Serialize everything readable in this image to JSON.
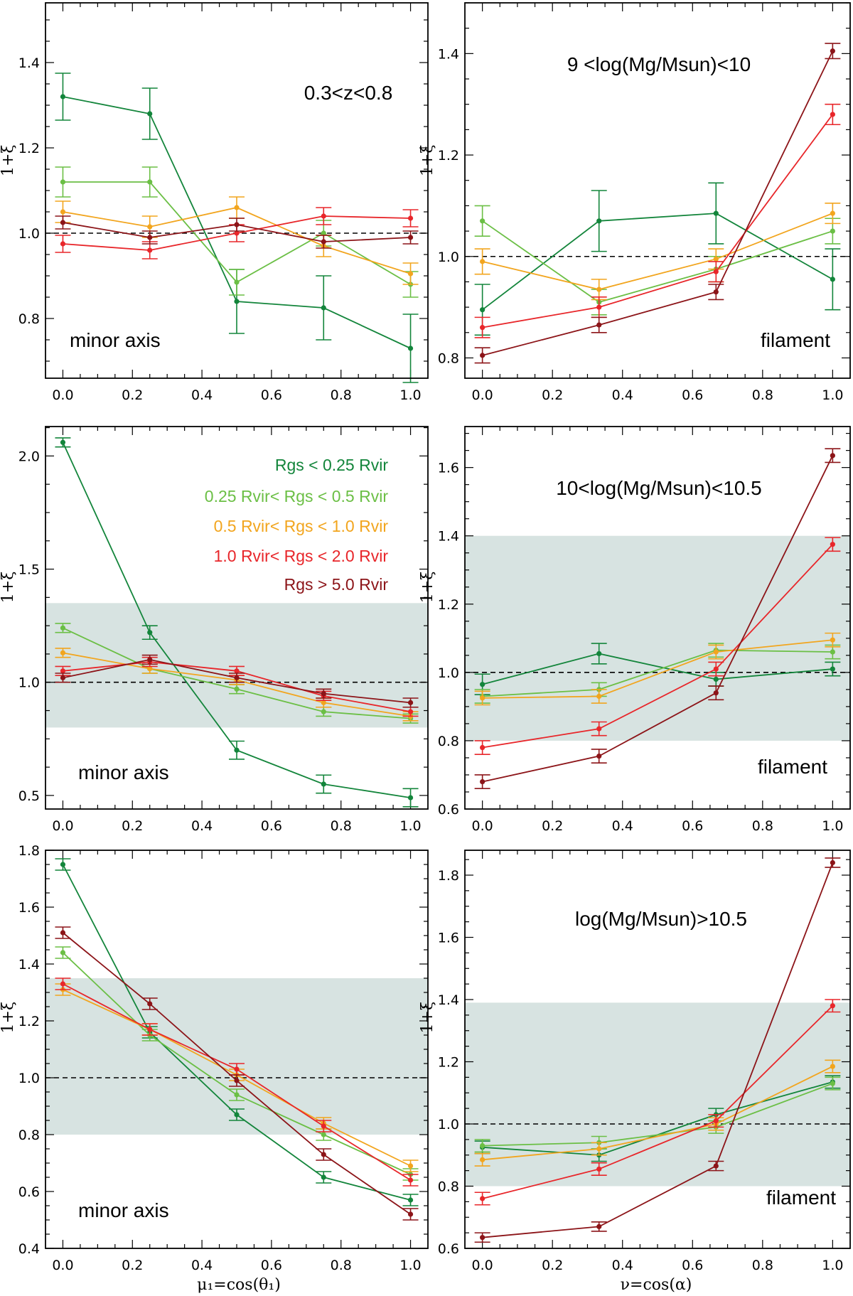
{
  "colors": {
    "dark_green": "#13853b",
    "light_green": "#6bbf45",
    "orange": "#f2a51e",
    "red": "#e8262a",
    "dark_red": "#8c1418",
    "band": "#d7e3e1"
  },
  "legend": [
    {
      "name": "Rgs < 0.25 Rvir",
      "color": "#13853b"
    },
    {
      "name": "0.25 Rvir< Rgs < 0.5 Rvir",
      "color": "#6bbf45"
    },
    {
      "name": "0.5 Rvir< Rgs < 1.0 Rvir",
      "color": "#f2a51e"
    },
    {
      "name": "1.0 Rvir< Rgs < 2.0 Rvir",
      "color": "#e8262a"
    },
    {
      "name": "Rgs > 5.0 Rvir",
      "color": "#8c1418"
    }
  ],
  "xlabels": {
    "left": "μ₁=cos(θ₁)",
    "right": "ν=cos(α)"
  },
  "chart_data": [
    {
      "type": "line",
      "ylabel": "1+ξ",
      "annotations": [
        "0.3<z<0.8",
        "minor axis"
      ],
      "x": [
        0.0,
        0.25,
        0.5,
        0.75,
        1.0
      ],
      "xlim": [
        -0.05,
        1.05
      ],
      "ylim": [
        0.66,
        1.54
      ],
      "xticks": [
        "0.0",
        "0.2",
        "0.4",
        "0.6",
        "0.8",
        "1.0"
      ],
      "yticks": [
        "0.8",
        "1.0",
        "1.2",
        "1.4"
      ],
      "band": null,
      "reference_line": 1.0,
      "series": [
        {
          "name": "Rgs < 0.25 Rvir",
          "values": [
            1.32,
            1.28,
            0.84,
            0.825,
            0.73
          ],
          "errors": [
            0.055,
            0.06,
            0.075,
            0.075,
            0.08
          ]
        },
        {
          "name": "0.25 Rvir< Rgs < 0.5 Rvir",
          "values": [
            1.12,
            1.12,
            0.885,
            1.0,
            0.88
          ],
          "errors": [
            0.035,
            0.035,
            0.03,
            0.03,
            0.03
          ]
        },
        {
          "name": "0.5 Rvir< Rgs < 1.0 Rvir",
          "values": [
            1.05,
            1.015,
            1.06,
            0.97,
            0.905
          ],
          "errors": [
            0.025,
            0.025,
            0.025,
            0.025,
            0.025
          ]
        },
        {
          "name": "1.0 Rvir< Rgs < 2.0 Rvir",
          "values": [
            0.975,
            0.96,
            1.0,
            1.04,
            1.035
          ],
          "errors": [
            0.02,
            0.02,
            0.02,
            0.02,
            0.02
          ]
        },
        {
          "name": "Rgs > 5.0 Rvir",
          "values": [
            1.025,
            0.99,
            1.02,
            0.98,
            0.99
          ],
          "errors": [
            0.015,
            0.015,
            0.015,
            0.015,
            0.015
          ]
        }
      ]
    },
    {
      "type": "line",
      "ylabel": "1+ξ",
      "annotations": [
        "9 <log(Mg/Msun)<10",
        "filament"
      ],
      "x": [
        0.0,
        0.333,
        0.667,
        1.0
      ],
      "xlim": [
        -0.05,
        1.05
      ],
      "ylim": [
        0.76,
        1.5
      ],
      "xticks": [
        "0.0",
        "0.2",
        "0.4",
        "0.6",
        "0.8",
        "1.0"
      ],
      "yticks": [
        "0.8",
        "1.0",
        "1.2",
        "1.4"
      ],
      "band": null,
      "reference_line": 1.0,
      "series": [
        {
          "name": "Rgs < 0.25 Rvir",
          "values": [
            0.895,
            1.07,
            1.085,
            0.955
          ],
          "errors": [
            0.05,
            0.06,
            0.06,
            0.06
          ]
        },
        {
          "name": "0.25 Rvir< Rgs < 0.5 Rvir",
          "values": [
            1.07,
            0.91,
            0.975,
            1.05
          ],
          "errors": [
            0.03,
            0.025,
            0.025,
            0.025
          ]
        },
        {
          "name": "0.5 Rvir< Rgs < 1.0 Rvir",
          "values": [
            0.99,
            0.935,
            0.995,
            1.085
          ],
          "errors": [
            0.025,
            0.02,
            0.02,
            0.02
          ]
        },
        {
          "name": "1.0 Rvir< Rgs < 2.0 Rvir",
          "values": [
            0.86,
            0.9,
            0.97,
            1.28
          ],
          "errors": [
            0.02,
            0.02,
            0.02,
            0.02
          ]
        },
        {
          "name": "Rgs > 5.0 Rvir",
          "values": [
            0.805,
            0.865,
            0.93,
            1.405
          ],
          "errors": [
            0.015,
            0.015,
            0.015,
            0.015
          ]
        }
      ]
    },
    {
      "type": "line",
      "ylabel": "1+ξ",
      "annotations": [
        "minor axis"
      ],
      "x": [
        0.0,
        0.25,
        0.5,
        0.75,
        1.0
      ],
      "xlim": [
        -0.05,
        1.05
      ],
      "ylim": [
        0.44,
        2.13
      ],
      "xticks": [
        "0.0",
        "0.2",
        "0.4",
        "0.6",
        "0.8",
        "1.0"
      ],
      "yticks": [
        "0.5",
        "1.0",
        "1.5",
        "2.0"
      ],
      "band": [
        0.8,
        1.35
      ],
      "reference_line": 1.0,
      "series": [
        {
          "name": "Rgs < 0.25 Rvir",
          "values": [
            2.06,
            1.22,
            0.7,
            0.55,
            0.49
          ],
          "errors": [
            0.02,
            0.03,
            0.04,
            0.04,
            0.04
          ]
        },
        {
          "name": "0.25 Rvir< Rgs < 0.5 Rvir",
          "values": [
            1.24,
            1.06,
            0.97,
            0.87,
            0.84
          ],
          "errors": [
            0.02,
            0.02,
            0.02,
            0.02,
            0.02
          ]
        },
        {
          "name": "0.5 Rvir< Rgs < 1.0 Rvir",
          "values": [
            1.13,
            1.06,
            1.01,
            0.91,
            0.85
          ],
          "errors": [
            0.02,
            0.02,
            0.02,
            0.02,
            0.02
          ]
        },
        {
          "name": "1.0 Rvir< Rgs < 2.0 Rvir",
          "values": [
            1.05,
            1.09,
            1.05,
            0.94,
            0.87
          ],
          "errors": [
            0.02,
            0.02,
            0.02,
            0.02,
            0.02
          ]
        },
        {
          "name": "Rgs > 5.0 Rvir",
          "values": [
            1.02,
            1.1,
            1.02,
            0.95,
            0.91
          ],
          "errors": [
            0.02,
            0.02,
            0.02,
            0.02,
            0.02
          ]
        }
      ]
    },
    {
      "type": "line",
      "ylabel": "1+ξ",
      "annotations": [
        "10<log(Mg/Msun)<10.5",
        "filament"
      ],
      "x": [
        0.0,
        0.333,
        0.667,
        1.0
      ],
      "xlim": [
        -0.05,
        1.05
      ],
      "ylim": [
        0.6,
        1.72
      ],
      "xticks": [
        "0.0",
        "0.2",
        "0.4",
        "0.6",
        "0.8",
        "1.0"
      ],
      "yticks": [
        "0.6",
        "0.8",
        "1.0",
        "1.2",
        "1.4",
        "1.6"
      ],
      "band": [
        0.8,
        1.4
      ],
      "reference_line": 1.0,
      "series": [
        {
          "name": "Rgs < 0.25 Rvir",
          "values": [
            0.965,
            1.055,
            0.98,
            1.01
          ],
          "errors": [
            0.03,
            0.03,
            0.02,
            0.02
          ]
        },
        {
          "name": "0.25 Rvir< Rgs < 0.5 Rvir",
          "values": [
            0.93,
            0.95,
            1.065,
            1.06
          ],
          "errors": [
            0.02,
            0.02,
            0.02,
            0.02
          ]
        },
        {
          "name": "0.5 Rvir< Rgs < 1.0 Rvir",
          "values": [
            0.925,
            0.93,
            1.06,
            1.095
          ],
          "errors": [
            0.02,
            0.02,
            0.02,
            0.02
          ]
        },
        {
          "name": "1.0 Rvir< Rgs < 2.0 Rvir",
          "values": [
            0.78,
            0.835,
            1.01,
            1.375
          ],
          "errors": [
            0.02,
            0.02,
            0.02,
            0.02
          ]
        },
        {
          "name": "Rgs > 5.0 Rvir",
          "values": [
            0.68,
            0.755,
            0.94,
            1.635
          ],
          "errors": [
            0.02,
            0.02,
            0.02,
            0.02
          ]
        }
      ]
    },
    {
      "type": "line",
      "ylabel": "1+ξ",
      "annotations": [
        "minor axis"
      ],
      "x": [
        0.0,
        0.25,
        0.5,
        0.75,
        1.0
      ],
      "xlim": [
        -0.05,
        1.05
      ],
      "ylim": [
        0.4,
        1.8
      ],
      "xticks": [
        "0.0",
        "0.2",
        "0.4",
        "0.6",
        "0.8",
        "1.0"
      ],
      "yticks": [
        "0.4",
        "0.6",
        "0.8",
        "1.0",
        "1.2",
        "1.4",
        "1.6",
        "1.8"
      ],
      "band": [
        0.8,
        1.35
      ],
      "reference_line": 1.0,
      "series": [
        {
          "name": "Rgs < 0.25 Rvir",
          "values": [
            1.75,
            1.16,
            0.87,
            0.65,
            0.57
          ],
          "errors": [
            0.02,
            0.02,
            0.02,
            0.02,
            0.02
          ]
        },
        {
          "name": "0.25 Rvir< Rgs < 0.5 Rvir",
          "values": [
            1.44,
            1.15,
            0.94,
            0.8,
            0.66
          ],
          "errors": [
            0.02,
            0.02,
            0.02,
            0.02,
            0.02
          ]
        },
        {
          "name": "0.5 Rvir< Rgs < 1.0 Rvir",
          "values": [
            1.31,
            1.17,
            1.01,
            0.84,
            0.69
          ],
          "errors": [
            0.02,
            0.02,
            0.02,
            0.02,
            0.02
          ]
        },
        {
          "name": "1.0 Rvir< Rgs < 2.0 Rvir",
          "values": [
            1.33,
            1.17,
            1.03,
            0.83,
            0.64
          ],
          "errors": [
            0.02,
            0.02,
            0.02,
            0.02,
            0.02
          ]
        },
        {
          "name": "Rgs > 5.0 Rvir",
          "values": [
            1.51,
            1.26,
            0.99,
            0.73,
            0.52
          ],
          "errors": [
            0.02,
            0.02,
            0.02,
            0.02,
            0.02
          ]
        }
      ]
    },
    {
      "type": "line",
      "ylabel": "1+ξ",
      "annotations": [
        "log(Mg/Msun)>10.5",
        "filament"
      ],
      "x": [
        0.0,
        0.333,
        0.667,
        1.0
      ],
      "xlim": [
        -0.05,
        1.05
      ],
      "ylim": [
        0.6,
        1.88
      ],
      "xticks": [
        "0.0",
        "0.2",
        "0.4",
        "0.6",
        "0.8",
        "1.0"
      ],
      "yticks": [
        "0.6",
        "0.8",
        "1.0",
        "1.2",
        "1.4",
        "1.6",
        "1.8"
      ],
      "band": [
        0.8,
        1.39
      ],
      "reference_line": 1.0,
      "series": [
        {
          "name": "Rgs < 0.25 Rvir",
          "values": [
            0.925,
            0.9,
            1.03,
            1.135
          ],
          "errors": [
            0.02,
            0.02,
            0.02,
            0.02
          ]
        },
        {
          "name": "0.25 Rvir< Rgs < 0.5 Rvir",
          "values": [
            0.93,
            0.94,
            0.99,
            1.13
          ],
          "errors": [
            0.02,
            0.02,
            0.02,
            0.02
          ]
        },
        {
          "name": "0.5 Rvir< Rgs < 1.0 Rvir",
          "values": [
            0.885,
            0.92,
            1.0,
            1.185
          ],
          "errors": [
            0.02,
            0.02,
            0.02,
            0.02
          ]
        },
        {
          "name": "1.0 Rvir< Rgs < 2.0 Rvir",
          "values": [
            0.76,
            0.855,
            1.01,
            1.38
          ],
          "errors": [
            0.02,
            0.02,
            0.02,
            0.02
          ]
        },
        {
          "name": "Rgs > 5.0 Rvir",
          "values": [
            0.635,
            0.67,
            0.865,
            1.84
          ],
          "errors": [
            0.015,
            0.015,
            0.015,
            0.015
          ]
        }
      ]
    }
  ]
}
